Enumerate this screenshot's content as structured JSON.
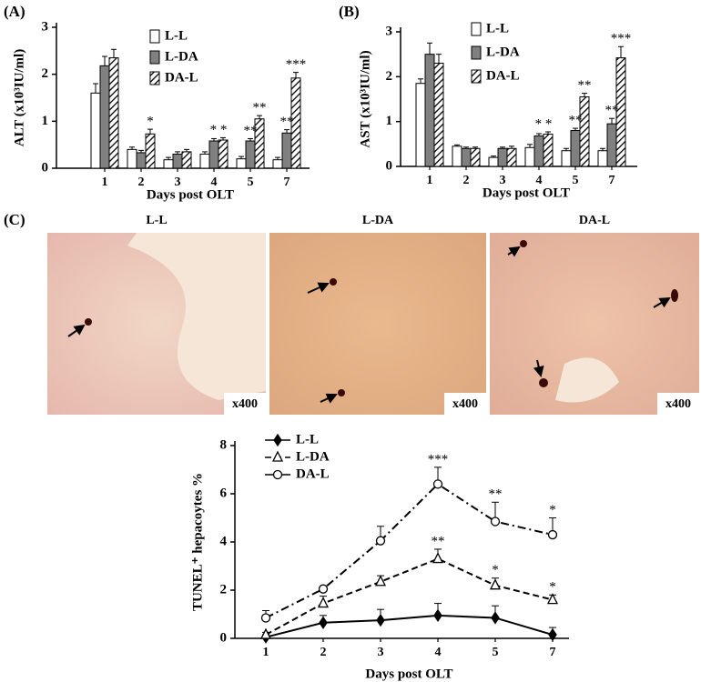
{
  "chart_data": [
    {
      "type": "bar",
      "panel_label": "(A)",
      "ylabel": "ALT (x10³IU/ml)",
      "xlabel": "Days post OLT",
      "categories": [
        "1",
        "2",
        "3",
        "4",
        "5",
        "7"
      ],
      "ylim": [
        0,
        3
      ],
      "yticks": [
        0,
        1,
        2,
        3
      ],
      "series": [
        {
          "name": "L-L",
          "color": "#ffffff",
          "values": [
            1.6,
            0.4,
            0.18,
            0.3,
            0.2,
            0.18
          ],
          "errors": [
            0.2,
            0.05,
            0.05,
            0.05,
            0.05,
            0.05
          ]
        },
        {
          "name": "L-DA",
          "color": "#808080",
          "values": [
            2.18,
            0.33,
            0.3,
            0.58,
            0.58,
            0.75
          ],
          "errors": [
            0.2,
            0.05,
            0.05,
            0.05,
            0.05,
            0.07
          ]
        },
        {
          "name": "DA-L",
          "color": "hatch",
          "values": [
            2.35,
            0.73,
            0.35,
            0.6,
            1.05,
            1.92
          ],
          "errors": [
            0.18,
            0.1,
            0.05,
            0.05,
            0.07,
            0.12
          ]
        }
      ],
      "annotations": [
        {
          "text": "*",
          "category": "2",
          "series": [
            "DA-L"
          ]
        },
        {
          "text": "* *",
          "category": "4",
          "series": [
            "L-DA",
            "DA-L"
          ]
        },
        {
          "text": "**",
          "category": "5",
          "series": [
            "L-DA"
          ]
        },
        {
          "text": "**",
          "category": "5",
          "series": [
            "DA-L"
          ]
        },
        {
          "text": "**",
          "category": "7",
          "series": [
            "L-DA"
          ]
        },
        {
          "text": "***",
          "category": "7",
          "series": [
            "DA-L"
          ]
        }
      ]
    },
    {
      "type": "bar",
      "panel_label": "(B)",
      "ylabel": "AST (x10³IU/ml)",
      "xlabel": "Days post OLT",
      "categories": [
        "1",
        "2",
        "3",
        "4",
        "5",
        "7"
      ],
      "ylim": [
        0,
        3
      ],
      "yticks": [
        0,
        1,
        2,
        3
      ],
      "series": [
        {
          "name": "L-L",
          "color": "#ffffff",
          "values": [
            1.85,
            0.45,
            0.2,
            0.42,
            0.35,
            0.35
          ],
          "errors": [
            0.1,
            0.03,
            0.03,
            0.07,
            0.05,
            0.05
          ]
        },
        {
          "name": "L-DA",
          "color": "#808080",
          "values": [
            2.5,
            0.4,
            0.4,
            0.68,
            0.8,
            0.95
          ],
          "errors": [
            0.25,
            0.03,
            0.03,
            0.05,
            0.05,
            0.12
          ]
        },
        {
          "name": "DA-L",
          "color": "hatch",
          "values": [
            2.3,
            0.4,
            0.4,
            0.72,
            1.55,
            2.42
          ],
          "errors": [
            0.2,
            0.03,
            0.05,
            0.05,
            0.08,
            0.25
          ]
        }
      ],
      "annotations": [
        {
          "text": "* *",
          "category": "4",
          "series": [
            "L-DA",
            "DA-L"
          ]
        },
        {
          "text": "**",
          "category": "5",
          "series": [
            "L-DA"
          ]
        },
        {
          "text": "**",
          "category": "5",
          "series": [
            "DA-L"
          ]
        },
        {
          "text": "**",
          "category": "7",
          "series": [
            "L-DA"
          ]
        },
        {
          "text": "***",
          "category": "7",
          "series": [
            "DA-L"
          ]
        }
      ]
    },
    {
      "type": "line",
      "ylabel": "TUNEL⁺ hepacoytes %",
      "xlabel": "Days post OLT",
      "categories": [
        "1",
        "2",
        "3",
        "4",
        "5",
        "7"
      ],
      "ylim": [
        0,
        8
      ],
      "yticks": [
        0,
        2,
        4,
        6,
        8
      ],
      "series": [
        {
          "name": "L-L",
          "color": "#000000",
          "dash": "solid",
          "marker": "filled-diamond",
          "values": [
            0.05,
            0.65,
            0.75,
            0.95,
            0.85,
            0.15
          ],
          "errors": [
            0.1,
            0.3,
            0.45,
            0.5,
            0.5,
            0.3
          ]
        },
        {
          "name": "L-DA",
          "color": "#000000",
          "dash": "dashed",
          "marker": "open-triangle",
          "values": [
            0.15,
            1.45,
            2.35,
            3.3,
            2.2,
            1.6
          ],
          "errors": [
            0.1,
            0.3,
            0.25,
            0.4,
            0.3,
            0.2
          ]
        },
        {
          "name": "DA-L",
          "color": "#000000",
          "dash": "dash-dot",
          "marker": "open-circle",
          "values": [
            0.85,
            2.05,
            4.05,
            6.4,
            4.85,
            4.3
          ],
          "errors": [
            0.3,
            0.1,
            0.6,
            0.7,
            0.8,
            0.7
          ]
        }
      ],
      "annotations": [
        {
          "text": "***",
          "category": "4",
          "series": [
            "DA-L"
          ]
        },
        {
          "text": "**",
          "category": "4",
          "series": [
            "L-DA"
          ]
        },
        {
          "text": "**",
          "category": "5",
          "series": [
            "DA-L"
          ]
        },
        {
          "text": "*",
          "category": "5",
          "series": [
            "L-DA"
          ]
        },
        {
          "text": "*",
          "category": "7",
          "series": [
            "DA-L"
          ]
        },
        {
          "text": "*",
          "category": "7",
          "series": [
            "L-DA"
          ]
        }
      ]
    }
  ],
  "images": {
    "panel_label": "(C)",
    "items": [
      {
        "label": "L-L",
        "magnification": "x400"
      },
      {
        "label": "L-DA",
        "magnification": "x400"
      },
      {
        "label": "DA-L",
        "magnification": "x400"
      }
    ]
  }
}
